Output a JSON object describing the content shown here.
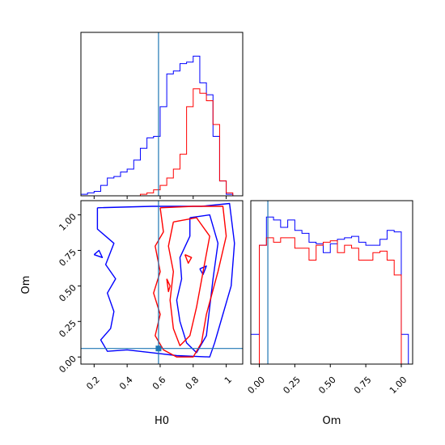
{
  "chart_data": {
    "type": "corner",
    "truth": {
      "H0": 0.59,
      "Om": 0.06
    },
    "colors": {
      "series_a": "#0000ff",
      "series_b": "#ff0000",
      "truth": "#1f77b4"
    },
    "panels": [
      {
        "id": "hist-H0",
        "type": "histogram",
        "xlim": [
          0.12,
          1.1
        ],
        "ylim": [
          0,
          1.1
        ],
        "yticks": "hidden",
        "xticks": [
          0.2,
          0.4,
          0.6,
          0.8,
          1.0
        ],
        "bin_edges": [
          0.12,
          0.16,
          0.2,
          0.24,
          0.28,
          0.32,
          0.36,
          0.4,
          0.44,
          0.48,
          0.52,
          0.56,
          0.6,
          0.64,
          0.68,
          0.72,
          0.76,
          0.8,
          0.84,
          0.88,
          0.92,
          0.96,
          1.0,
          1.04
        ],
        "series": [
          {
            "color": "blue",
            "values": [
              0.01,
              0.02,
              0.03,
              0.07,
              0.12,
              0.13,
              0.16,
              0.18,
              0.24,
              0.32,
              0.39,
              0.4,
              0.6,
              0.82,
              0.84,
              0.89,
              0.9,
              0.94,
              0.76,
              0.68,
              0.4,
              0.1,
              0.01
            ]
          },
          {
            "color": "red",
            "values": [
              0,
              0,
              0,
              0,
              0,
              0,
              0,
              0,
              0,
              0.01,
              0.02,
              0.04,
              0.07,
              0.12,
              0.18,
              0.28,
              0.6,
              0.72,
              0.69,
              0.64,
              0.48,
              0.1,
              0.02
            ]
          }
        ]
      },
      {
        "id": "joint-H0-Om",
        "type": "contour",
        "xlabel": "H0",
        "ylabel": "Om",
        "xlim": [
          0.12,
          1.1
        ],
        "ylim": [
          -0.05,
          1.1
        ],
        "xticks": [
          0.2,
          0.4,
          0.6,
          0.8,
          1.0
        ],
        "yticks": [
          "0.00",
          "0.25",
          "0.50",
          "0.75",
          "1.00"
        ],
        "series": [
          {
            "color": "blue",
            "contours": [
              [
                [
                  0.22,
                  1.05
                ],
                [
                  0.55,
                  1.06
                ],
                [
                  0.85,
                  1.06
                ],
                [
                  1.02,
                  1.08
                ],
                [
                  1.05,
                  0.8
                ],
                [
                  1.03,
                  0.5
                ],
                [
                  0.98,
                  0.3
                ],
                [
                  0.93,
                  0.1
                ],
                [
                  0.9,
                  0.0
                ],
                [
                  0.7,
                  0.01
                ],
                [
                  0.55,
                  0.03
                ],
                [
                  0.4,
                  0.05
                ],
                [
                  0.28,
                  0.04
                ],
                [
                  0.24,
                  0.12
                ],
                [
                  0.3,
                  0.2
                ],
                [
                  0.32,
                  0.32
                ],
                [
                  0.28,
                  0.45
                ],
                [
                  0.33,
                  0.55
                ],
                [
                  0.27,
                  0.65
                ],
                [
                  0.32,
                  0.8
                ],
                [
                  0.22,
                  0.9
                ],
                [
                  0.22,
                  1.05
                ]
              ],
              [
                [
                  0.78,
                  0.98
                ],
                [
                  0.9,
                  1.0
                ],
                [
                  0.95,
                  0.8
                ],
                [
                  0.92,
                  0.55
                ],
                [
                  0.9,
                  0.35
                ],
                [
                  0.88,
                  0.15
                ],
                [
                  0.82,
                  0.03
                ],
                [
                  0.76,
                  0.1
                ],
                [
                  0.72,
                  0.25
                ],
                [
                  0.7,
                  0.4
                ],
                [
                  0.73,
                  0.55
                ],
                [
                  0.72,
                  0.7
                ],
                [
                  0.78,
                  0.85
                ],
                [
                  0.78,
                  0.98
                ]
              ],
              [
                [
                  0.2,
                  0.72
                ],
                [
                  0.25,
                  0.7
                ],
                [
                  0.23,
                  0.75
                ],
                [
                  0.2,
                  0.72
                ]
              ],
              [
                [
                  0.84,
                  0.62
                ],
                [
                  0.88,
                  0.64
                ],
                [
                  0.86,
                  0.58
                ],
                [
                  0.84,
                  0.62
                ]
              ]
            ]
          },
          {
            "color": "red",
            "contours": [
              [
                [
                  0.6,
                  1.05
                ],
                [
                  0.8,
                  1.06
                ],
                [
                  0.98,
                  1.06
                ],
                [
                  1.0,
                  0.85
                ],
                [
                  0.95,
                  0.6
                ],
                [
                  0.88,
                  0.3
                ],
                [
                  0.85,
                  0.1
                ],
                [
                  0.8,
                  0.0
                ],
                [
                  0.7,
                  0.0
                ],
                [
                  0.62,
                  0.05
                ],
                [
                  0.57,
                  0.15
                ],
                [
                  0.6,
                  0.3
                ],
                [
                  0.56,
                  0.45
                ],
                [
                  0.6,
                  0.6
                ],
                [
                  0.57,
                  0.78
                ],
                [
                  0.62,
                  0.88
                ],
                [
                  0.6,
                  1.05
                ]
              ],
              [
                [
                  0.68,
                  0.95
                ],
                [
                  0.82,
                  0.98
                ],
                [
                  0.9,
                  0.85
                ],
                [
                  0.86,
                  0.6
                ],
                [
                  0.82,
                  0.35
                ],
                [
                  0.78,
                  0.15
                ],
                [
                  0.72,
                  0.08
                ],
                [
                  0.68,
                  0.2
                ],
                [
                  0.66,
                  0.4
                ],
                [
                  0.68,
                  0.6
                ],
                [
                  0.65,
                  0.78
                ],
                [
                  0.68,
                  0.95
                ]
              ],
              [
                [
                  0.64,
                  0.55
                ],
                [
                  0.66,
                  0.5
                ],
                [
                  0.65,
                  0.46
                ],
                [
                  0.64,
                  0.55
                ]
              ],
              [
                [
                  0.75,
                  0.72
                ],
                [
                  0.79,
                  0.7
                ],
                [
                  0.77,
                  0.66
                ],
                [
                  0.75,
                  0.72
                ]
              ]
            ]
          }
        ]
      },
      {
        "id": "hist-Om",
        "type": "histogram",
        "xlim": [
          -0.06,
          1.08
        ],
        "ylim": [
          0,
          1.1
        ],
        "yticks": "hidden",
        "xticks": [
          "0.00",
          "0.25",
          "0.50",
          "0.75",
          "1.00"
        ],
        "xlabel": "Om",
        "bin_edges": [
          -0.06,
          0.0,
          0.05,
          0.1,
          0.15,
          0.2,
          0.25,
          0.3,
          0.35,
          0.4,
          0.45,
          0.5,
          0.55,
          0.6,
          0.65,
          0.7,
          0.75,
          0.8,
          0.85,
          0.9,
          0.95,
          1.0,
          1.05
        ],
        "series": [
          {
            "color": "blue",
            "values": [
              0.2,
              0.8,
              0.99,
              0.97,
              0.92,
              0.97,
              0.9,
              0.88,
              0.82,
              0.81,
              0.75,
              0.81,
              0.84,
              0.85,
              0.86,
              0.82,
              0.8,
              0.8,
              0.84,
              0.9,
              0.89,
              0.2
            ]
          },
          {
            "color": "red",
            "values": [
              0,
              0.8,
              0.85,
              0.82,
              0.85,
              0.85,
              0.78,
              0.78,
              0.7,
              0.8,
              0.82,
              0.83,
              0.75,
              0.8,
              0.78,
              0.7,
              0.7,
              0.75,
              0.76,
              0.7,
              0.6,
              0
            ]
          }
        ]
      }
    ]
  }
}
